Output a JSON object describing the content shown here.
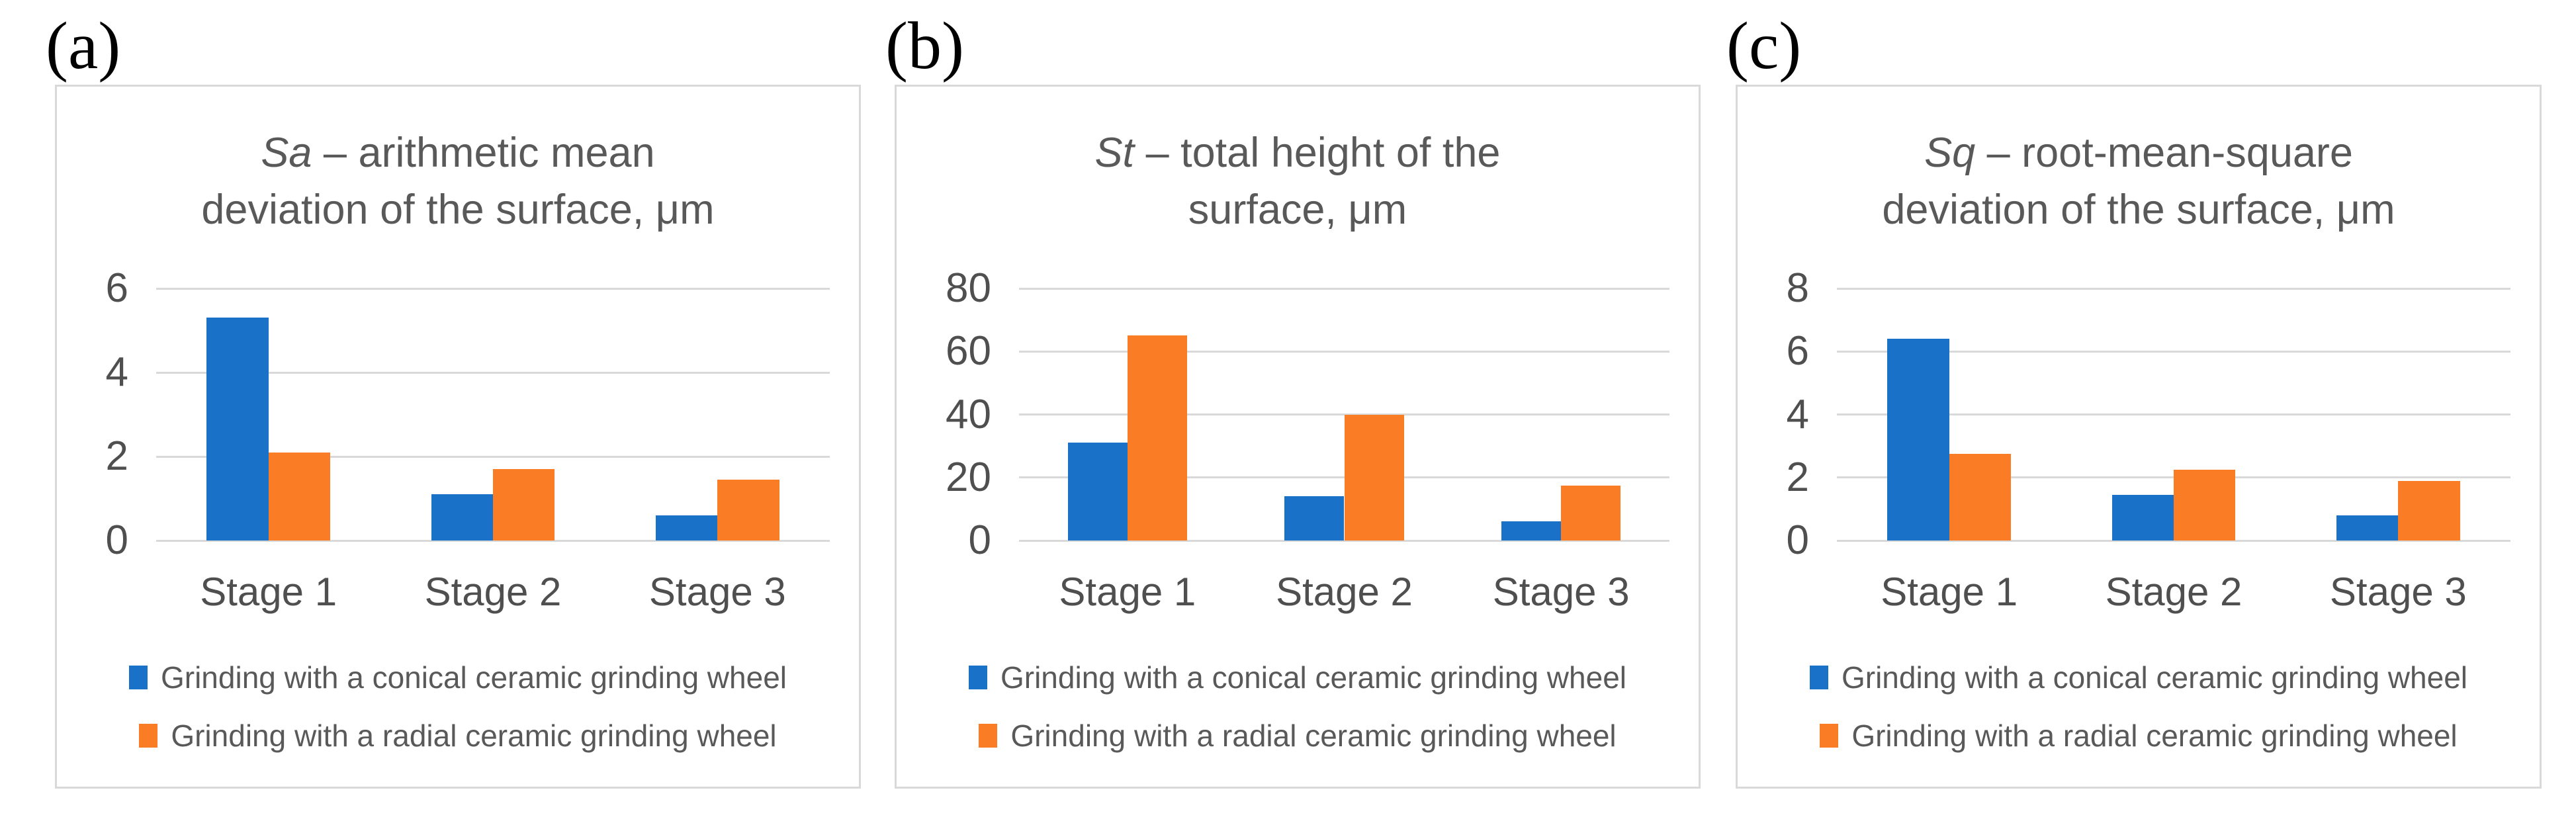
{
  "figure_description": "Three grouped bar charts comparing surface roughness parameters for two grinding wheel types over three stages",
  "colors": {
    "series_conical": "#1a72c8",
    "series_radial": "#fa7d26",
    "title_text": "#595959",
    "axis_text": "#4f4f4f",
    "gridline": "#d9d9d9",
    "panel_border": "#d9d9d9",
    "panel_label_text": "#000000"
  },
  "chart_data": [
    {
      "type": "bar",
      "panel_label": "(a)",
      "title": "Sa – arithmetic mean deviation of the surface, μm",
      "title_symbol": "Sa",
      "title_line1_rest": " – arithmetic mean",
      "title_line2": "deviation of the surface, μm",
      "categories": [
        "Stage 1",
        "Stage 2",
        "Stage 3"
      ],
      "series": [
        {
          "name": "Grinding with a conical ceramic grinding wheel",
          "color": "#1a72c8",
          "values": [
            5.3,
            1.1,
            0.6
          ]
        },
        {
          "name": "Grinding with a radial ceramic grinding wheel",
          "color": "#fa7d26",
          "values": [
            2.1,
            1.7,
            1.45
          ]
        }
      ],
      "ylim": [
        0,
        6
      ],
      "yticks": [
        0,
        2,
        4,
        6
      ],
      "grid": true,
      "legend_position": "bottom"
    },
    {
      "type": "bar",
      "panel_label": "(b)",
      "title": "St – total height of the surface, μm",
      "title_symbol": "St",
      "title_line1_rest": " – total height of the",
      "title_line2": "surface, μm",
      "categories": [
        "Stage 1",
        "Stage 2",
        "Stage 3"
      ],
      "series": [
        {
          "name": "Grinding with a conical ceramic grinding wheel",
          "color": "#1a72c8",
          "values": [
            31,
            14,
            6
          ]
        },
        {
          "name": "Grinding with a radial ceramic grinding wheel",
          "color": "#fa7d26",
          "values": [
            65,
            40,
            17.5
          ]
        }
      ],
      "ylim": [
        0,
        80
      ],
      "yticks": [
        0,
        20,
        40,
        60,
        80
      ],
      "grid": true,
      "legend_position": "bottom"
    },
    {
      "type": "bar",
      "panel_label": "(c)",
      "title": "Sq – root-mean-square deviation of the surface, μm",
      "title_symbol": "Sq",
      "title_line1_rest": " – root-mean-square",
      "title_line2": "deviation of the surface, μm",
      "categories": [
        "Stage 1",
        "Stage 2",
        "Stage 3"
      ],
      "series": [
        {
          "name": "Grinding with a conical ceramic grinding wheel",
          "color": "#1a72c8",
          "values": [
            6.4,
            1.45,
            0.8
          ]
        },
        {
          "name": "Grinding with a radial ceramic grinding wheel",
          "color": "#fa7d26",
          "values": [
            2.75,
            2.25,
            1.9
          ]
        }
      ],
      "ylim": [
        0,
        8
      ],
      "yticks": [
        0,
        2,
        4,
        6,
        8
      ],
      "grid": true,
      "legend_position": "bottom"
    }
  ]
}
